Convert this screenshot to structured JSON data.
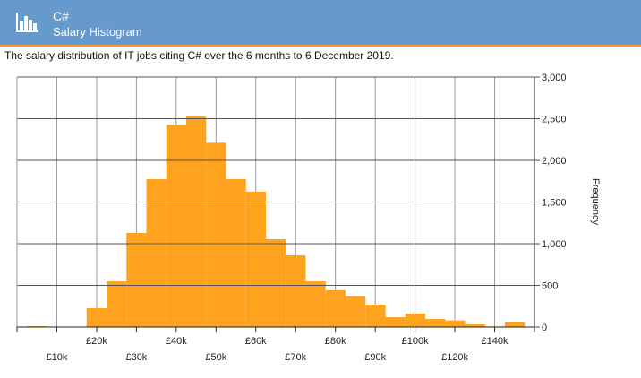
{
  "header": {
    "title": "C#",
    "subtitle": "Salary Histogram",
    "icon": "bar-chart-icon",
    "background": "#6699cc",
    "accent": "#f0a030"
  },
  "description": "The salary distribution of IT jobs citing C# over the 6 months to 6 December 2019.",
  "chart_data": {
    "type": "bar",
    "title": "",
    "xlabel": "",
    "ylabel": "Frequency",
    "ylim": [
      0,
      3000
    ],
    "y_ticks": [
      "0",
      "500",
      "1,000",
      "1,500",
      "2,000",
      "2,500",
      "3,000"
    ],
    "x_tick_labels": [
      "£10k",
      "£20k",
      "£30k",
      "£40k",
      "£50k",
      "£60k",
      "£70k",
      "£80k",
      "£90k",
      "£100k",
      "£120k",
      "£140k"
    ],
    "values": [
      10,
      0,
      5,
      226,
      548,
      1129,
      1774,
      2427,
      2527,
      2211,
      1774,
      1624,
      1054,
      860,
      548,
      441,
      369,
      269,
      118,
      161,
      97,
      79,
      32,
      7,
      54
    ],
    "bar_color": "#ffa31f",
    "grid": true,
    "legend": "none"
  }
}
